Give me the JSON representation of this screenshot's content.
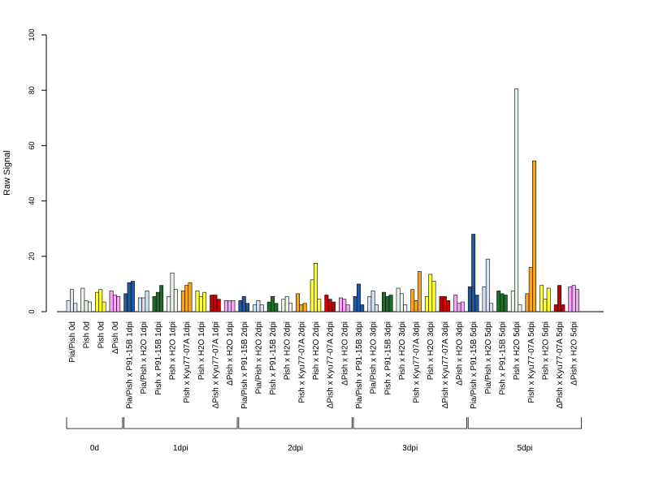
{
  "chart_data": {
    "type": "bar",
    "ylabel": "Raw Signal",
    "ylim": [
      0,
      100
    ],
    "yticks": [
      0,
      20,
      40,
      60,
      80,
      100
    ],
    "grid": false,
    "group_colors": [
      "#dce6f1",
      "#ffffff",
      "#ffff00",
      "#f2a6f2"
    ],
    "group_border_colors": [
      "#000000",
      "#000000",
      "#000000",
      "#000000"
    ],
    "groups": [
      {
        "label": "Pia/Pish 0d",
        "color": "#dce6f1",
        "values": [
          4.0,
          8.0,
          3.0
        ]
      },
      {
        "label": "Pish 0d",
        "color": "#e8f3e8",
        "values": [
          8.5,
          4.0,
          3.5
        ]
      },
      {
        "label": "Pish 0d",
        "color": "#ffff33",
        "values": [
          7.0,
          8.0,
          3.5
        ]
      },
      {
        "label": "ΔPish 0d",
        "color": "#f5a6f5",
        "values": [
          7.5,
          6.0,
          5.5
        ]
      },
      {
        "label": "Pia/Pish x P91-15B 1dpi",
        "color": "#1f5aa0",
        "values": [
          6.5,
          10.5,
          11.0
        ]
      },
      {
        "label": "Pia/Pish x H2O 1dpi",
        "color": "#d4e2f2",
        "values": [
          5.0,
          5.0,
          7.5
        ]
      },
      {
        "label": "Pish x P91-15B 1dpi",
        "color": "#1e6e2a",
        "values": [
          5.5,
          7.0,
          9.5
        ]
      },
      {
        "label": "Pish x H2O 1dpi",
        "color": "#e8f5e8",
        "values": [
          5.5,
          14.0,
          8.0
        ]
      },
      {
        "label": "Pish x Kyu77-07A 1dpi",
        "color": "#f5a623",
        "values": [
          7.5,
          9.5,
          10.5
        ]
      },
      {
        "label": "Pish x H2O 1dpi",
        "color": "#ffff33",
        "values": [
          7.5,
          5.5,
          7.0
        ]
      },
      {
        "label": "ΔPish x Kyu77-07A 1dpi",
        "color": "#cc0000",
        "values": [
          6.0,
          6.0,
          4.5
        ]
      },
      {
        "label": "ΔPish x H2O 1dpi",
        "color": "#f5a6f5",
        "values": [
          4.0,
          4.0,
          4.0
        ]
      },
      {
        "label": "Pia/Pish x P91-15B 2dpi",
        "color": "#1f5aa0",
        "values": [
          4.0,
          5.5,
          3.0
        ]
      },
      {
        "label": "Pia/Pish x H2O 2dpi",
        "color": "#d4e2f2",
        "values": [
          2.5,
          4.0,
          2.5
        ]
      },
      {
        "label": "Pish x P91-15B 2dpi",
        "color": "#1e6e2a",
        "values": [
          3.5,
          5.5,
          3.0
        ]
      },
      {
        "label": "Pish x H2O 2dpi",
        "color": "#e8f5e8",
        "values": [
          4.5,
          5.5,
          3.0
        ]
      },
      {
        "label": "Pish x Kyu77-07A 2dpi",
        "color": "#f5a623",
        "values": [
          6.5,
          2.5,
          3.0
        ]
      },
      {
        "label": "Pish x H2O 2dpi",
        "color": "#ffff33",
        "values": [
          11.5,
          17.5,
          4.5
        ]
      },
      {
        "label": "ΔPish x Kyu77-07A 2dpi",
        "color": "#cc0000",
        "values": [
          6.0,
          4.5,
          3.5
        ]
      },
      {
        "label": "ΔPish x H2O 2dpi",
        "color": "#f5a6f5",
        "values": [
          5.0,
          4.5,
          2.5
        ]
      },
      {
        "label": "Pia/Pish x P91-15B 3dpi",
        "color": "#1f5aa0",
        "values": [
          5.5,
          10.0,
          2.5
        ]
      },
      {
        "label": "Pia/Pish x H2O 3dpi",
        "color": "#d4e2f2",
        "values": [
          5.5,
          7.5,
          2.5
        ]
      },
      {
        "label": "Pish x P91-15B 3dpi",
        "color": "#1e6e2a",
        "values": [
          7.0,
          5.5,
          6.0
        ]
      },
      {
        "label": "Pish x H2O 3dpi",
        "color": "#e8f5e8",
        "values": [
          8.5,
          6.5,
          2.5
        ]
      },
      {
        "label": "Pish x Kyu77-07A 3dpi",
        "color": "#f5a623",
        "values": [
          8.0,
          4.0,
          14.5
        ]
      },
      {
        "label": "Pish x H2O 3dpi",
        "color": "#ffff33",
        "values": [
          5.5,
          13.5,
          11.0
        ]
      },
      {
        "label": "ΔPish x Kyu77-07A 3dpi",
        "color": "#cc0000",
        "values": [
          5.5,
          5.5,
          4.0
        ]
      },
      {
        "label": "ΔPish x H2O 3dpi",
        "color": "#f5a6f5",
        "values": [
          6.0,
          3.0,
          3.5
        ]
      },
      {
        "label": "Pia/Pish x P91-15B 5dpi",
        "color": "#1f5aa0",
        "values": [
          9.0,
          28.0,
          6.0
        ]
      },
      {
        "label": "Pia/Pish x H2O 5dpi",
        "color": "#d4e2f2",
        "values": [
          9.0,
          19.0,
          3.0
        ]
      },
      {
        "label": "Pish x P91-15B 5dpi",
        "color": "#1e6e2a",
        "values": [
          7.5,
          6.5,
          6.0
        ]
      },
      {
        "label": "Pish x H2O 5dpi",
        "color": "#e8f5e8",
        "values": [
          7.5,
          80.5,
          2.5
        ]
      },
      {
        "label": "Pish x Kyu77-07A 5dpi",
        "color": "#f5a623",
        "values": [
          6.5,
          16.0,
          54.5
        ]
      },
      {
        "label": "Pish x H2O 5dpi",
        "color": "#ffff33",
        "values": [
          9.5,
          4.5,
          8.5
        ]
      },
      {
        "label": "ΔPish x Kyu77-07A 5dpi",
        "color": "#cc0000",
        "values": [
          2.5,
          9.5,
          2.5
        ]
      },
      {
        "label": "ΔPish x H2O 5dpi",
        "color": "#f5a6f5",
        "values": [
          9.0,
          9.5,
          8.0
        ]
      }
    ],
    "timepoints": [
      {
        "label": "0d",
        "from": 0,
        "to": 3
      },
      {
        "label": "1dpi",
        "from": 4,
        "to": 11
      },
      {
        "label": "2dpi",
        "from": 12,
        "to": 19
      },
      {
        "label": "3dpi",
        "from": 20,
        "to": 27
      },
      {
        "label": "5dpi",
        "from": 28,
        "to": 35
      }
    ]
  }
}
